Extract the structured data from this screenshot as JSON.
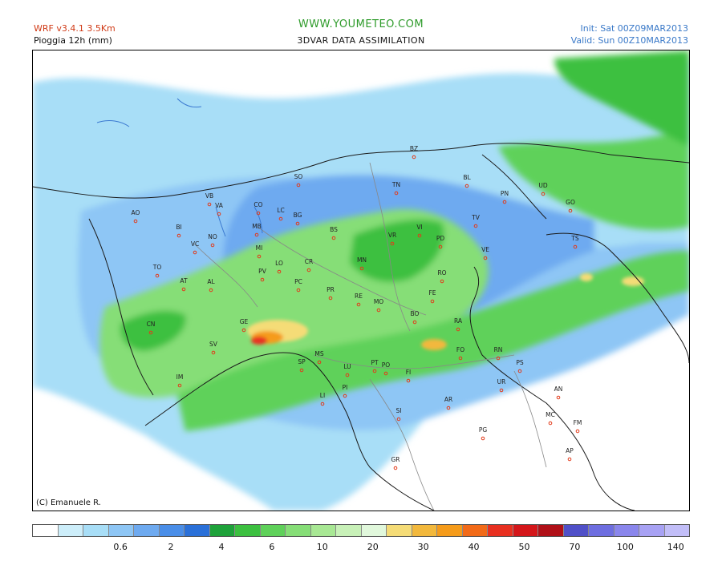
{
  "header": {
    "model": "WRF v3.4.1 3.5Km",
    "variable": "Pioggia 12h (mm)",
    "site": "WWW.YOUMETEO.COM",
    "assimilation": "3DVAR DATA ASSIMILATION",
    "init": "Init: Sat 00Z09MAR2013",
    "valid": "Valid: Sun 00Z10MAR2013"
  },
  "copyright": "(C) Emanuele R.",
  "colors": {
    "c0": "#ffffff",
    "c1": "#cdeefa",
    "c2": "#a8def7",
    "c3": "#8ec6f5",
    "c4": "#6eaaf0",
    "c5": "#4a8ee8",
    "c6": "#2a70d8",
    "g1": "#1ea23a",
    "g2": "#3cc040",
    "g3": "#5fd15a",
    "g4": "#86de77",
    "g5": "#a8e894",
    "g6": "#c8f1b8",
    "g7": "#e1f8dc",
    "y1": "#f5dc77",
    "y2": "#f2b83c",
    "o1": "#f59b1a",
    "o2": "#f26a18",
    "r1": "#e83020",
    "r2": "#d4161a",
    "r3": "#b01018",
    "p1": "#5050c8",
    "p2": "#6e6ee0",
    "p3": "#8a86ec",
    "p4": "#a8a2f4",
    "p5": "#c2bef8",
    "border": "#1a1a1a",
    "region": "#888888",
    "coast": "#1a1a1a",
    "lake": "#3a78d0"
  },
  "legend": {
    "colors": [
      "#ffffff",
      "#cdeefa",
      "#a8def7",
      "#8ec6f5",
      "#6eaaf0",
      "#4a8ee8",
      "#2a70d8",
      "#1ea23a",
      "#3cc040",
      "#5fd15a",
      "#86de77",
      "#a8e894",
      "#c8f1b8",
      "#e1f8dc",
      "#f5dc77",
      "#f2b83c",
      "#f59b1a",
      "#f26a18",
      "#e83020",
      "#d4161a",
      "#b01018",
      "#5050c8",
      "#6e6ee0",
      "#8a86ec",
      "#a8a2f4",
      "#c2bef8"
    ],
    "labels": [
      "0.6",
      "2",
      "4",
      "6",
      "10",
      "20",
      "30",
      "40",
      "50",
      "70",
      "100",
      "140"
    ],
    "label_boundary_index": [
      2,
      4,
      6,
      8,
      10,
      12,
      14,
      16,
      18,
      20,
      22,
      24
    ]
  },
  "cities": [
    "AO",
    "BI",
    "VC",
    "NO",
    "VB",
    "VA",
    "CO",
    "LC",
    "SO",
    "BG",
    "MB",
    "MI",
    "BS",
    "TN",
    "BZ",
    "BL",
    "PN",
    "UD",
    "GO",
    "TS",
    "TV",
    "VI",
    "VR",
    "PD",
    "VE",
    "RO",
    "FE",
    "MN",
    "CR",
    "LO",
    "PV",
    "PC",
    "PR",
    "RE",
    "MO",
    "BO",
    "RA",
    "FO",
    "RN",
    "PS",
    "UR",
    "AN",
    "MC",
    "FM",
    "AP",
    "AR",
    "PG",
    "SI",
    "FI",
    "PO",
    "PT",
    "LU",
    "PI",
    "LI",
    "MS",
    "SP",
    "GE",
    "SV",
    "IM",
    "CN",
    "AT",
    "AL",
    "TO",
    "GR"
  ]
}
